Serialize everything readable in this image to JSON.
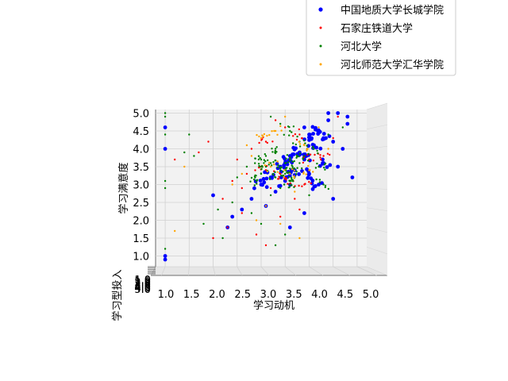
{
  "chart_data": {
    "type": "scatter",
    "projection": "3d",
    "xlabel": "学习动机",
    "ylabel": "学习满意度",
    "zlabel": "学习型投入",
    "x_ticks": [
      "1.0",
      "1.5",
      "2.0",
      "2.5",
      "3.0",
      "3.5",
      "4.0",
      "4.5",
      "5.0"
    ],
    "y_ticks": [
      "1.0",
      "1.5",
      "2.0",
      "2.5",
      "3.0",
      "3.5",
      "4.0",
      "4.5",
      "5.0"
    ],
    "z_ticks": [
      "1.0",
      "1.5",
      "2.0",
      "2.5",
      "3.0",
      "3.5",
      "4.0",
      "4.5",
      "5.0"
    ],
    "xlim": [
      0.8,
      5.2
    ],
    "ylim": [
      0.7,
      5.1
    ],
    "grid": true,
    "legend_position": "upper-right",
    "series": [
      {
        "name": "中国地质大学长城学院",
        "color": "#0000ff",
        "marker_size": "large",
        "points": [
          [
            4.6,
            5.0
          ],
          [
            4.4,
            4.8
          ],
          [
            4.2,
            4.5
          ],
          [
            4.8,
            4.7
          ],
          [
            4.0,
            4.4
          ],
          [
            3.9,
            4.6
          ],
          [
            4.5,
            4.2
          ],
          [
            4.7,
            4.0
          ],
          [
            4.1,
            4.1
          ],
          [
            3.8,
            3.9
          ],
          [
            3.6,
            3.8
          ],
          [
            4.3,
            3.6
          ],
          [
            4.6,
            3.5
          ],
          [
            4.9,
            3.2
          ],
          [
            3.4,
            3.5
          ],
          [
            3.2,
            3.2
          ],
          [
            3.0,
            3.0
          ],
          [
            3.5,
            3.1
          ],
          [
            3.7,
            3.4
          ],
          [
            4.0,
            3.3
          ],
          [
            4.2,
            3.0
          ],
          [
            4.5,
            2.6
          ],
          [
            3.3,
            2.8
          ],
          [
            2.8,
            2.6
          ],
          [
            2.6,
            2.3
          ],
          [
            2.4,
            2.1
          ],
          [
            2.0,
            2.7
          ],
          [
            3.1,
            2.4
          ],
          [
            3.6,
            1.8
          ],
          [
            3.9,
            2.2
          ],
          [
            2.3,
            1.8
          ],
          [
            1.0,
            1.0
          ],
          [
            1.0,
            0.9
          ],
          [
            1.0,
            4.0
          ],
          [
            1.0,
            4.6
          ],
          [
            4.4,
            5.0
          ],
          [
            4.8,
            4.9
          ],
          [
            4.3,
            4.3
          ],
          [
            3.9,
            3.7
          ],
          [
            3.5,
            3.6
          ]
        ]
      },
      {
        "name": "石家庄铁道大学",
        "color": "#ff0000",
        "marker_size": "small",
        "points": [
          [
            3.3,
            4.8
          ],
          [
            3.5,
            4.6
          ],
          [
            3.8,
            4.4
          ],
          [
            3.1,
            4.2
          ],
          [
            2.8,
            4.0
          ],
          [
            2.5,
            3.7
          ],
          [
            3.0,
            3.5
          ],
          [
            3.4,
            3.3
          ],
          [
            3.6,
            3.1
          ],
          [
            3.2,
            2.9
          ],
          [
            2.6,
            2.9
          ],
          [
            2.4,
            3.1
          ],
          [
            2.2,
            2.6
          ],
          [
            2.6,
            2.2
          ],
          [
            2.9,
            1.6
          ],
          [
            2.3,
            1.8
          ],
          [
            2.0,
            1.5
          ],
          [
            1.7,
            3.9
          ],
          [
            1.2,
            3.7
          ],
          [
            1.9,
            4.2
          ],
          [
            3.8,
            2.3
          ],
          [
            4.0,
            3.7
          ],
          [
            4.3,
            3.8
          ],
          [
            3.7,
            2.6
          ],
          [
            3.4,
            2.1
          ],
          [
            3.1,
            1.3
          ],
          [
            2.7,
            3.3
          ],
          [
            4.5,
            4.3
          ],
          [
            4.6,
            4.9
          ],
          [
            3.9,
            3.0
          ]
        ]
      },
      {
        "name": "河北大学",
        "color": "#008000",
        "marker_size": "small",
        "points": [
          [
            3.2,
            4.9
          ],
          [
            3.4,
            4.7
          ],
          [
            3.6,
            4.5
          ],
          [
            3.8,
            4.2
          ],
          [
            3.3,
            4.0
          ],
          [
            3.1,
            3.8
          ],
          [
            3.5,
            3.6
          ],
          [
            3.7,
            3.4
          ],
          [
            3.0,
            3.3
          ],
          [
            3.3,
            3.2
          ],
          [
            3.6,
            3.0
          ],
          [
            3.9,
            3.8
          ],
          [
            4.1,
            4.0
          ],
          [
            4.4,
            4.4
          ],
          [
            4.7,
            4.6
          ],
          [
            4.2,
            3.5
          ],
          [
            3.4,
            2.9
          ],
          [
            3.2,
            2.7
          ],
          [
            2.9,
            3.1
          ],
          [
            2.7,
            3.5
          ],
          [
            2.5,
            3.2
          ],
          [
            2.4,
            2.5
          ],
          [
            2.1,
            2.3
          ],
          [
            2.8,
            2.2
          ],
          [
            3.0,
            1.9
          ],
          [
            3.5,
            1.6
          ],
          [
            3.3,
            1.3
          ],
          [
            2.2,
            1.5
          ],
          [
            1.8,
            1.9
          ],
          [
            1.0,
            2.9
          ],
          [
            1.0,
            3.1
          ],
          [
            1.0,
            4.4
          ],
          [
            1.0,
            5.0
          ],
          [
            1.0,
            4.9
          ],
          [
            1.0,
            1.2
          ],
          [
            1.4,
            3.9
          ],
          [
            1.5,
            4.4
          ],
          [
            1.6,
            3.8
          ],
          [
            4.0,
            2.7
          ],
          [
            4.3,
            3.0
          ],
          [
            3.8,
            3.6
          ],
          [
            3.1,
            3.5
          ],
          [
            3.4,
            3.4
          ],
          [
            3.6,
            3.7
          ],
          [
            3.5,
            3.3
          ],
          [
            3.2,
            3.6
          ],
          [
            3.7,
            3.2
          ],
          [
            3.0,
            3.7
          ]
        ]
      },
      {
        "name": "河北师范大学汇华学院",
        "color": "#ffa500",
        "marker_size": "small",
        "points": [
          [
            3.5,
            4.9
          ],
          [
            3.3,
            4.5
          ],
          [
            3.0,
            4.3
          ],
          [
            2.8,
            3.8
          ],
          [
            3.2,
            3.5
          ],
          [
            3.6,
            3.3
          ],
          [
            3.9,
            4.1
          ],
          [
            4.2,
            4.6
          ],
          [
            2.6,
            3.3
          ],
          [
            2.4,
            3.0
          ],
          [
            3.1,
            2.4
          ],
          [
            2.9,
            2.0
          ],
          [
            1.2,
            1.7
          ],
          [
            1.4,
            3.5
          ],
          [
            3.7,
            2.8
          ],
          [
            4.0,
            3.4
          ],
          [
            2.7,
            4.1
          ],
          [
            3.4,
            1.9
          ],
          [
            3.8,
            1.5
          ],
          [
            4.4,
            4.0
          ]
        ]
      }
    ]
  }
}
